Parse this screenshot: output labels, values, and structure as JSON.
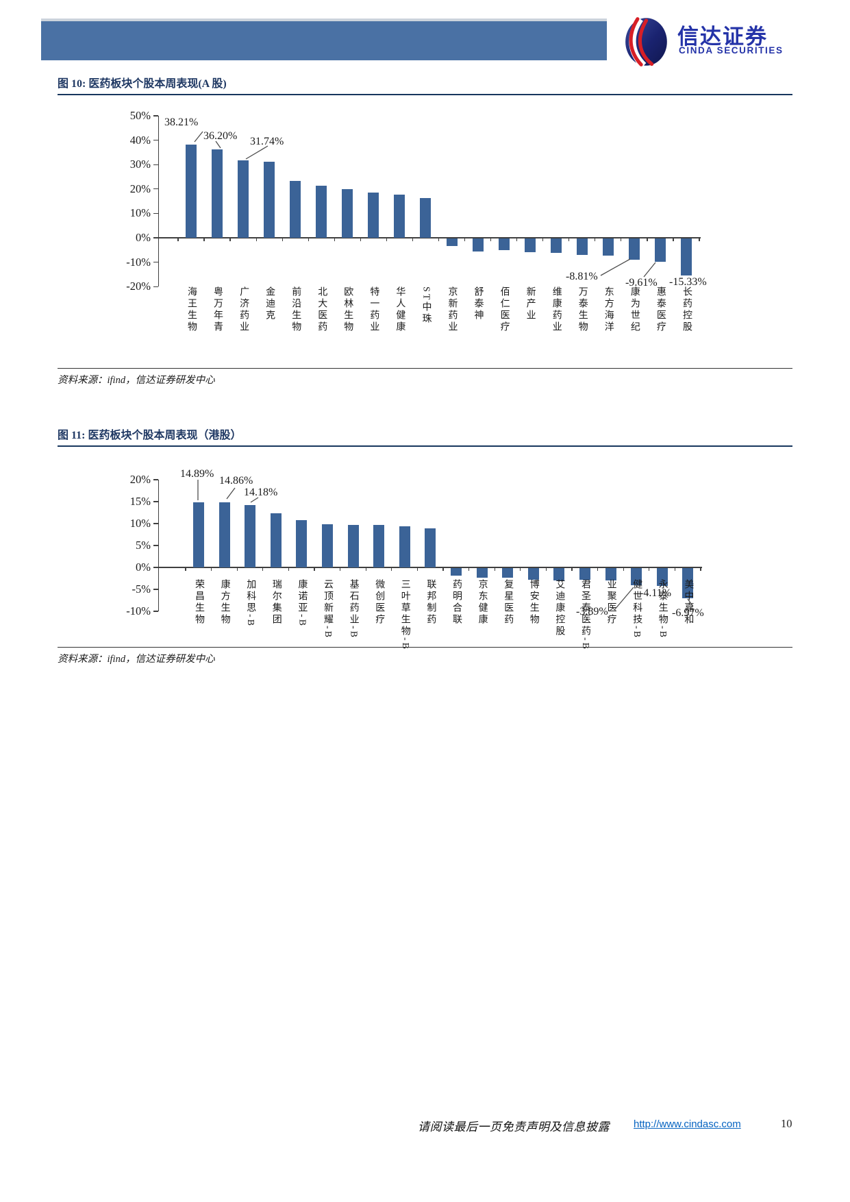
{
  "header": {
    "logo_cn": "信达证券",
    "logo_en": "CINDA SECURITIES",
    "bar_color": "#4a71a4"
  },
  "figures": [
    {
      "title": "图 10: 医药板块个股本周表现(A 股)",
      "source": "资料来源：ifind，信达证券研发中心"
    },
    {
      "title": "图 11: 医药板块个股本周表现（港股）",
      "source": "资料来源：ifind，信达证券研发中心"
    }
  ],
  "footer": {
    "disclaimer": "请阅读最后一页免责声明及信息披露",
    "url": "http://www.cindasc.com",
    "page_number": "10"
  },
  "colors": {
    "bar": "#3b6397",
    "title_navy": "#1f3863",
    "header_bar": "#4a71a4",
    "link_blue": "#0563c1",
    "logo_blue": "#2433a8",
    "logo_red": "#d71f26"
  },
  "chart_data": [
    {
      "type": "bar",
      "title": "图 10: 医药板块个股本周表现(A 股)",
      "xlabel": "",
      "ylabel": "",
      "ylim": [
        -20,
        50
      ],
      "grid": false,
      "legend": false,
      "ytick_labels": [
        "50%",
        "40%",
        "30%",
        "20%",
        "10%",
        "0%",
        "-10%",
        "-20%"
      ],
      "categories": [
        "海王生物",
        "粤万年青",
        "广济药业",
        "金迪克",
        "前沿生物",
        "北大医药",
        "欧林生物",
        "特一药业",
        "华人健康",
        "ST中珠",
        "京新药业",
        "舒泰神",
        "佰仁医疗",
        "新产业",
        "维康药业",
        "万泰生物",
        "东方海洋",
        "康为世纪",
        "惠泰医疗",
        "长药控股"
      ],
      "values": [
        38.21,
        36.2,
        31.74,
        31.3,
        23.2,
        21.4,
        19.9,
        18.6,
        17.6,
        16.2,
        -3.2,
        -5.5,
        -4.9,
        -5.8,
        -6.1,
        -6.9,
        -7.2,
        -8.81,
        -9.61,
        -15.33
      ],
      "data_labels": [
        {
          "index": 0,
          "text": "38.21%"
        },
        {
          "index": 1,
          "text": "36.20%"
        },
        {
          "index": 2,
          "text": "31.74%"
        },
        {
          "index": 17,
          "text": "-8.81%"
        },
        {
          "index": 18,
          "text": "-9.61%"
        },
        {
          "index": 19,
          "text": "-15.33%"
        }
      ]
    },
    {
      "type": "bar",
      "title": "图 11: 医药板块个股本周表现（港股）",
      "xlabel": "",
      "ylabel": "",
      "ylim": [
        -10,
        20
      ],
      "grid": false,
      "legend": false,
      "ytick_labels": [
        "20%",
        "15%",
        "10%",
        "5%",
        "0%",
        "-5%",
        "-10%"
      ],
      "categories": [
        "荣昌生物",
        "康方生物",
        "加科思-B",
        "瑞尔集团",
        "康诺亚-B",
        "云顶新耀-B",
        "基石药业-B",
        "微创医疗",
        "三叶草生物-B",
        "联邦制药",
        "药明合联",
        "京东健康",
        "复星医药",
        "博安生物",
        "艾迪康控股",
        "君圣泰医药-B",
        "业聚医疗",
        "健世科技-B",
        "永泰生物-B",
        "美中嘉和"
      ],
      "values": [
        14.89,
        14.86,
        14.18,
        12.3,
        10.8,
        9.9,
        9.7,
        9.7,
        9.4,
        8.9,
        -1.7,
        -2.2,
        -2.2,
        -2.7,
        -2.9,
        -2.7,
        -2.9,
        -3.89,
        -4.11,
        -6.97
      ],
      "data_labels": [
        {
          "index": 0,
          "text": "14.89%"
        },
        {
          "index": 1,
          "text": "14.86%"
        },
        {
          "index": 2,
          "text": "14.18%"
        },
        {
          "index": 17,
          "text": "-3.89%"
        },
        {
          "index": 18,
          "text": "-4.11%"
        },
        {
          "index": 19,
          "text": "-6.97%"
        }
      ]
    }
  ]
}
